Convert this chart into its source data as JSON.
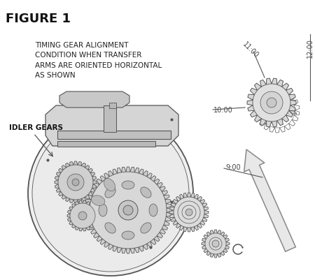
{
  "title": "FIGURE 1",
  "annotation_text": "TIMING GEAR ALIGNMENT\nCONDITION WHEN TRANSFER\nARMS ARE ORIENTED HORIZONTAL\nAS SHOWN",
  "idler_label": "IDLER GEARS",
  "bg_color": "#ffffff",
  "line_color": "#555555",
  "light_gray": "#e8e8e8",
  "mid_gray": "#cccccc",
  "dark_gray": "#aaaaaa",
  "title_fontsize": 13,
  "annotation_fontsize": 7.5,
  "label_fontsize": 7.5,
  "clock_11": "11:00",
  "clock_12": "12:00",
  "clock_10": "10:00",
  "clock_9": "9:00"
}
